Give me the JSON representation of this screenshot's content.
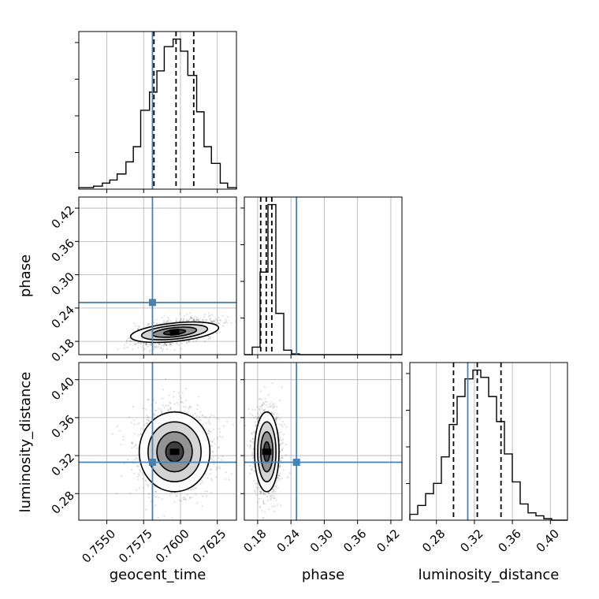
{
  "chart_data": {
    "type": "corner",
    "parameters": [
      "geocent_time",
      "phase",
      "luminosity_distance"
    ],
    "axis_labels": {
      "geocent_time": "geocent_time",
      "phase": "phase",
      "luminosity_distance": "luminosity_distance"
    },
    "ranges": {
      "geocent_time": [
        0.7531,
        0.7638
      ],
      "phase": [
        0.156,
        0.44
      ],
      "luminosity_distance": [
        0.252,
        0.418
      ]
    },
    "ticks": {
      "geocent_time": [
        0.755,
        0.7575,
        0.76,
        0.7625
      ],
      "phase": [
        0.18,
        0.24,
        0.3,
        0.36,
        0.42
      ],
      "luminosity_distance": [
        0.28,
        0.32,
        0.36,
        0.4
      ]
    },
    "tick_labels": {
      "geocent_time": [
        "0.7550",
        "0.7575",
        "0.7600",
        "0.7625"
      ],
      "phase": [
        "0.18",
        "0.24",
        "0.30",
        "0.36",
        "0.42"
      ],
      "luminosity_distance": [
        "0.28",
        "0.32",
        "0.36",
        "0.40"
      ]
    },
    "truths": {
      "geocent_time": 0.7581,
      "phase": 0.25,
      "luminosity_distance": 0.313
    },
    "quantiles": {
      "geocent_time": [
        0.7582,
        0.7597,
        0.7609
      ],
      "phase": [
        0.1855,
        0.1955,
        0.2055
      ],
      "luminosity_distance": [
        0.298,
        0.323,
        0.348
      ]
    },
    "histograms": {
      "geocent_time": {
        "bins": [
          0.7531,
          0.7536,
          0.7541,
          0.7547,
          0.7552,
          0.7557,
          0.7563,
          0.7568,
          0.7573,
          0.7579,
          0.7584,
          0.7589,
          0.7595,
          0.76,
          0.7605,
          0.7611,
          0.7616,
          0.7621,
          0.7627,
          0.7632,
          0.7638
        ],
        "counts": [
          1,
          1,
          2,
          4,
          6,
          10,
          18,
          28,
          52,
          64,
          78,
          94,
          99,
          91,
          75,
          51,
          28,
          17,
          4,
          1
        ]
      },
      "phase": {
        "bins": [
          0.156,
          0.1702,
          0.1844,
          0.1986,
          0.2128,
          0.227,
          0.2412,
          0.2554,
          0.2696,
          0.2838,
          0.298,
          0.3122,
          0.3264,
          0.3406,
          0.3548,
          0.369,
          0.3832,
          0.3974,
          0.4116,
          0.4258,
          0.44
        ],
        "counts": [
          0,
          10,
          110,
          200,
          55,
          6,
          1,
          0,
          0,
          0,
          0,
          0,
          0,
          0,
          0,
          0,
          0,
          0,
          0,
          0
        ]
      },
      "luminosity_distance": {
        "bins": [
          0.252,
          0.2603,
          0.2686,
          0.2769,
          0.2852,
          0.2935,
          0.3018,
          0.3101,
          0.3184,
          0.3267,
          0.335,
          0.3433,
          0.3516,
          0.3599,
          0.3682,
          0.3765,
          0.3848,
          0.3931,
          0.4014,
          0.4097,
          0.418
        ],
        "counts": [
          4,
          10,
          18,
          25,
          43,
          65,
          84,
          96,
          102,
          97,
          84,
          67,
          45,
          26,
          11,
          5,
          3,
          1,
          0,
          0
        ]
      }
    },
    "distributions": {
      "geocent_time": {
        "mean": 0.7596,
        "sd": 0.0012
      },
      "phase": {
        "mean": 0.1965,
        "sd": 0.011
      },
      "luminosity_distance": {
        "mean": 0.324,
        "sd": 0.021
      },
      "correlations": {
        "phase|geocent_time": 0.55,
        "luminosity_distance|geocent_time": 0.0,
        "luminosity_distance|phase": 0.0
      }
    },
    "grid": true,
    "colors": {
      "truth": "#4682b4",
      "hist": "#000000",
      "quantile": "#000000",
      "points": "#000000"
    }
  }
}
